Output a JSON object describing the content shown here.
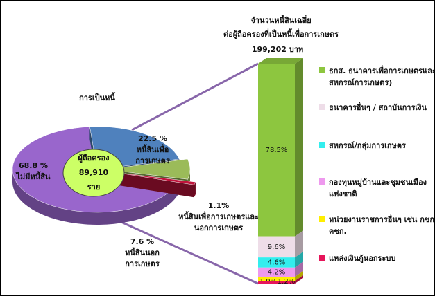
{
  "chart_data": [
    {
      "type": "pie",
      "title": "การเป็นหนี้",
      "categories": [
        "ไม่มีหนี้สิน",
        "หนี้สินเพื่อการเกษตร",
        "หนี้สินนอกการเกษตร",
        "หนี้สินเพื่อการเกษตรและนอกการเกษตร"
      ],
      "values": [
        68.8,
        22.5,
        7.6,
        1.1
      ],
      "value_labels": [
        "68.8 %",
        "22.5 %",
        "7.6 %",
        "1.1%"
      ],
      "colors": [
        "#9966cc",
        "#4f81bd",
        "#9bbb59",
        "#c0143c"
      ],
      "center_label": [
        "ผู้ถือครอง",
        "89,910",
        "ราย"
      ]
    },
    {
      "type": "stacked_bar",
      "title": [
        "จำนวนหนี้สินเฉลี่ย",
        "ต่อผู้ถือครองที่เป็นหนี้เพื่อการเกษตร"
      ],
      "subtitle": "199,202 บาท",
      "series": [
        {
          "name": "ธกส. ธนาคารเพื่อการเกษตรและสหกรณ์การเกษตร)",
          "color": "#8dc63f",
          "values": [
            78.5
          ],
          "value_labels": [
            "78.5%"
          ]
        },
        {
          "name": "ธนาคารอื่นๆ / สถาบันการเงิน",
          "color": "#eedde8",
          "values": [
            9.6
          ],
          "value_labels": [
            "9.6%"
          ]
        },
        {
          "name": "สหกรณ์/กลุ่มการเกษตร",
          "color": "#33eeee",
          "values": [
            4.6
          ],
          "value_labels": [
            "4.6%"
          ]
        },
        {
          "name": "กองทุนหมู่บ้านและชุมชนเมืองแห่งชาติ",
          "color": "#ee99ee",
          "values": [
            4.2
          ],
          "value_labels": [
            "4.2%"
          ]
        },
        {
          "name": "หน่วยงานราชการอื่นๆ เช่น กชก. คชก.",
          "color": "#ffee00",
          "values": [
            1.9
          ],
          "value_labels": [
            "1.9%"
          ]
        },
        {
          "name": "แหล่งเงินกู้นอกระบบ",
          "color": "#e6155a",
          "values": [
            1.2
          ],
          "value_labels": [
            "1.2%"
          ]
        }
      ]
    }
  ]
}
